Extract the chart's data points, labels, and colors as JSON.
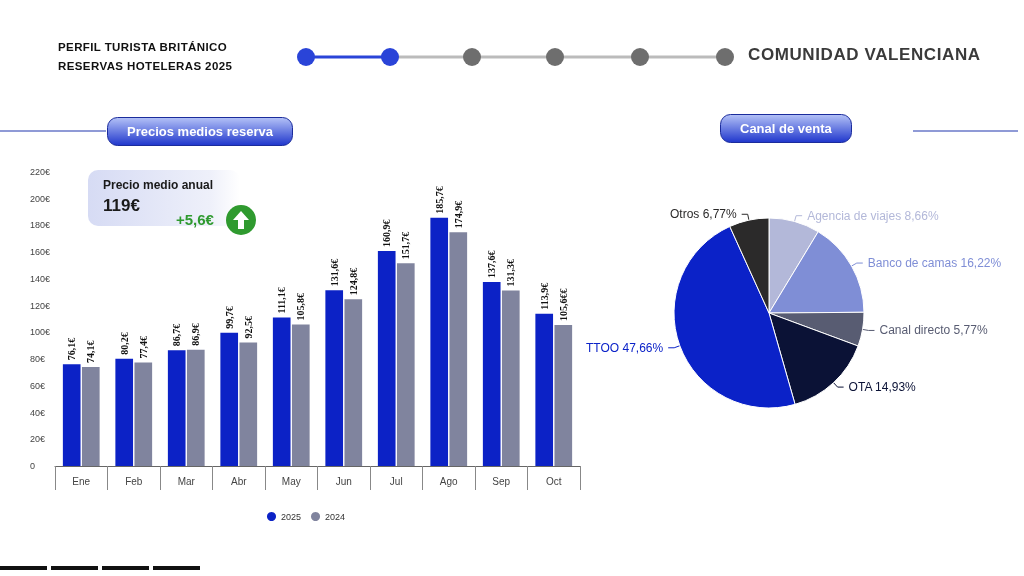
{
  "chart_data": [
    {
      "type": "other",
      "title": "PERFIL TURISTA BRITÁNICO",
      "subtitle": "RESERVAS HOTELERAS 2025",
      "annotations": [
        "COMUNIDAD VALENCIANA"
      ]
    },
    {
      "type": "bar",
      "title": "Precios medios reserva",
      "categories": [
        "Ene",
        "Feb",
        "Mar",
        "Abr",
        "May",
        "Jun",
        "Jul",
        "Ago",
        "Sep",
        "Oct"
      ],
      "series": [
        {
          "name": "2025",
          "color": "#0c22c6",
          "values": [
            76.1,
            80.2,
            86.7,
            99.7,
            111.1,
            131.6,
            160.9,
            185.7,
            137.6,
            113.9
          ],
          "value_labels": [
            "76,1€",
            "80,2€",
            "86,7€",
            "99,7€",
            "111,1€",
            "131,6€",
            "160,9€",
            "185,7€",
            "137,6€",
            "113,9€"
          ]
        },
        {
          "name": "2024",
          "color": "#80849e",
          "values": [
            74.1,
            77.4,
            86.9,
            92.5,
            105.8,
            124.8,
            151.7,
            174.9,
            131.3,
            105.6
          ],
          "value_labels": [
            "74,1€",
            "77,4€",
            "86,9€",
            "92,5€",
            "105,8€",
            "124,8€",
            "151,7€",
            "174,9€",
            "131,3€",
            "105,6€€"
          ]
        }
      ],
      "ylim": [
        0,
        220
      ],
      "yticks": [
        0,
        {
          "value": 20,
          "label": "20€"
        },
        {
          "value": 40,
          "label": "40€"
        },
        {
          "value": 60,
          "label": "60€"
        },
        {
          "value": 80,
          "label": "80€"
        },
        {
          "value": 100,
          "label": "100€"
        },
        {
          "value": 120,
          "label": "120€"
        },
        {
          "value": 140,
          "label": "140€"
        },
        {
          "value": 160,
          "label": "160€"
        },
        {
          "value": 180,
          "label": "180€"
        },
        {
          "value": 200,
          "label": "200€"
        },
        {
          "value": 220,
          "label": "220€"
        }
      ],
      "legend": "bottom",
      "annotations": [
        "Precio medio anual",
        "119€",
        "+5,6€"
      ]
    },
    {
      "type": "pie",
      "title": "Canal de venta",
      "categories": [
        "Agencia de viajes",
        "Banco de camas",
        "Canal directo",
        "OTA",
        "TTOO",
        "Otros"
      ],
      "values": [
        8.66,
        16.22,
        5.77,
        14.93,
        47.66,
        6.77
      ],
      "colors": [
        "#b3b8d9",
        "#7f8ed6",
        "#585c72",
        "#0b1236",
        "#0b22c8",
        "#2b2a2a"
      ],
      "value_labels": [
        "8,66%",
        "16,22%",
        "5,77%",
        "14,93%",
        "47,66%",
        "6,77%"
      ]
    }
  ]
}
